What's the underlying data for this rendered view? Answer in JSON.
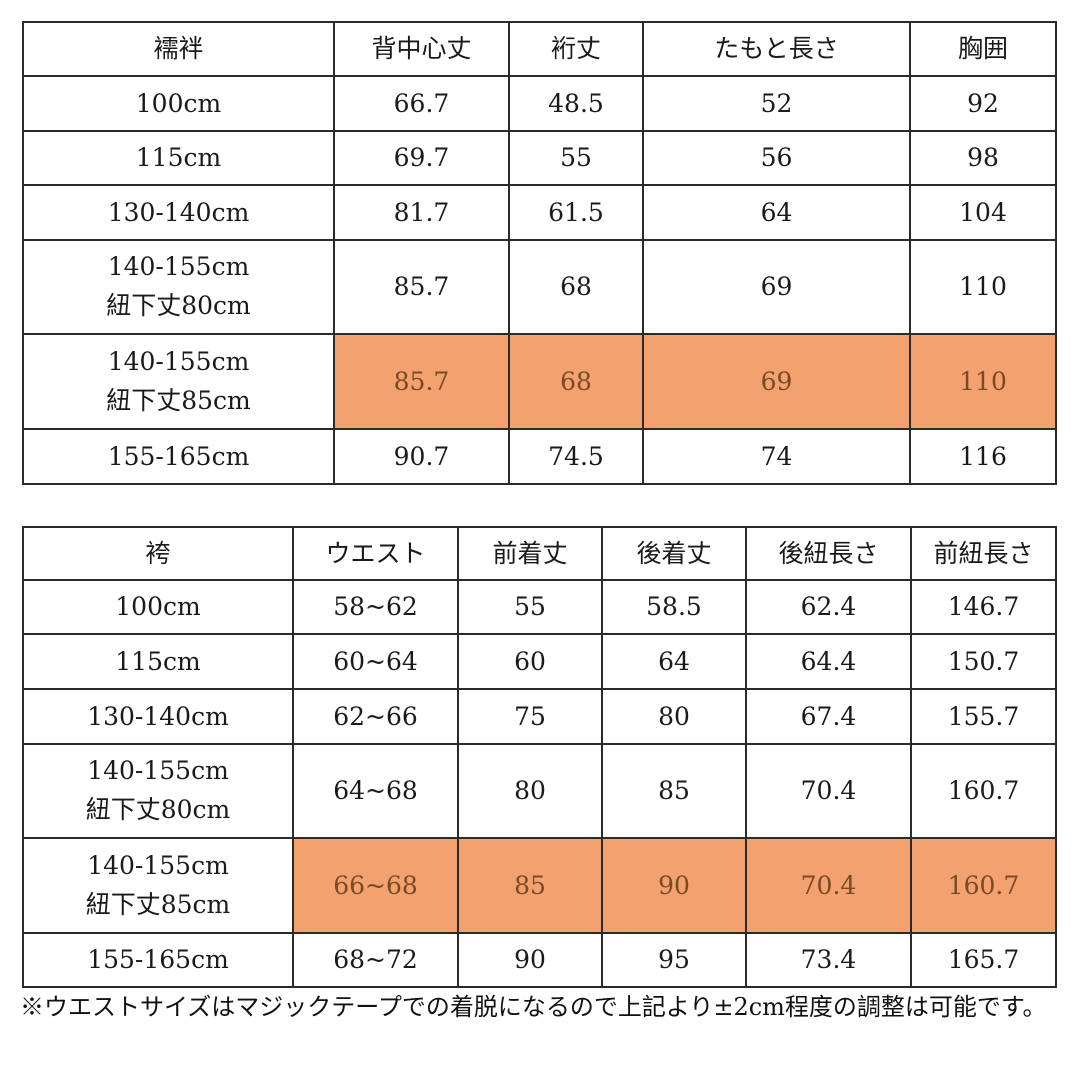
{
  "juban_table": {
    "headers": [
      "襦袢",
      "背中心丈",
      "裄丈",
      "たもと長さ",
      "胸囲"
    ],
    "rows": [
      {
        "size": "100cm",
        "cells": [
          "66.7",
          "48.5",
          "52",
          "92"
        ],
        "highlight": false
      },
      {
        "size": "115cm",
        "cells": [
          "69.7",
          "55",
          "56",
          "98"
        ],
        "highlight": false
      },
      {
        "size": "130-140cm",
        "cells": [
          "81.7",
          "61.5",
          "64",
          "104"
        ],
        "highlight": false
      },
      {
        "size": "140-155cm\n紐下丈80cm",
        "cells": [
          "85.7",
          "68",
          "69",
          "110"
        ],
        "highlight": false
      },
      {
        "size": "140-155cm\n紐下丈85cm",
        "cells": [
          "85.7",
          "68",
          "69",
          "110"
        ],
        "highlight": true
      },
      {
        "size": "155-165cm",
        "cells": [
          "90.7",
          "74.5",
          "74",
          "116"
        ],
        "highlight": false
      }
    ]
  },
  "hakama_table": {
    "headers": [
      "袴",
      "ウエスト",
      "前着丈",
      "後着丈",
      "後紐長さ",
      "前紐長さ"
    ],
    "rows": [
      {
        "size": "100cm",
        "cells": [
          "58~62",
          "55",
          "58.5",
          "62.4",
          "146.7"
        ],
        "highlight": false
      },
      {
        "size": "115cm",
        "cells": [
          "60~64",
          "60",
          "64",
          "64.4",
          "150.7"
        ],
        "highlight": false
      },
      {
        "size": "130-140cm",
        "cells": [
          "62~66",
          "75",
          "80",
          "67.4",
          "155.7"
        ],
        "highlight": false
      },
      {
        "size": "140-155cm\n紐下丈80cm",
        "cells": [
          "64~68",
          "80",
          "85",
          "70.4",
          "160.7"
        ],
        "highlight": false
      },
      {
        "size": "140-155cm\n紐下丈85cm",
        "cells": [
          "66~68",
          "85",
          "90",
          "70.4",
          "160.7"
        ],
        "highlight": true
      },
      {
        "size": "155-165cm",
        "cells": [
          "68~72",
          "90",
          "95",
          "73.4",
          "165.7"
        ],
        "highlight": false
      }
    ]
  },
  "note": "※ウエストサイズはマジックテープでの着脱になるので上記より±2cm程度の調整は可能です。",
  "colors": {
    "highlight_bg": "#f3a26f",
    "highlight_text": "#7a4a26",
    "border": "#2b2b2b"
  }
}
